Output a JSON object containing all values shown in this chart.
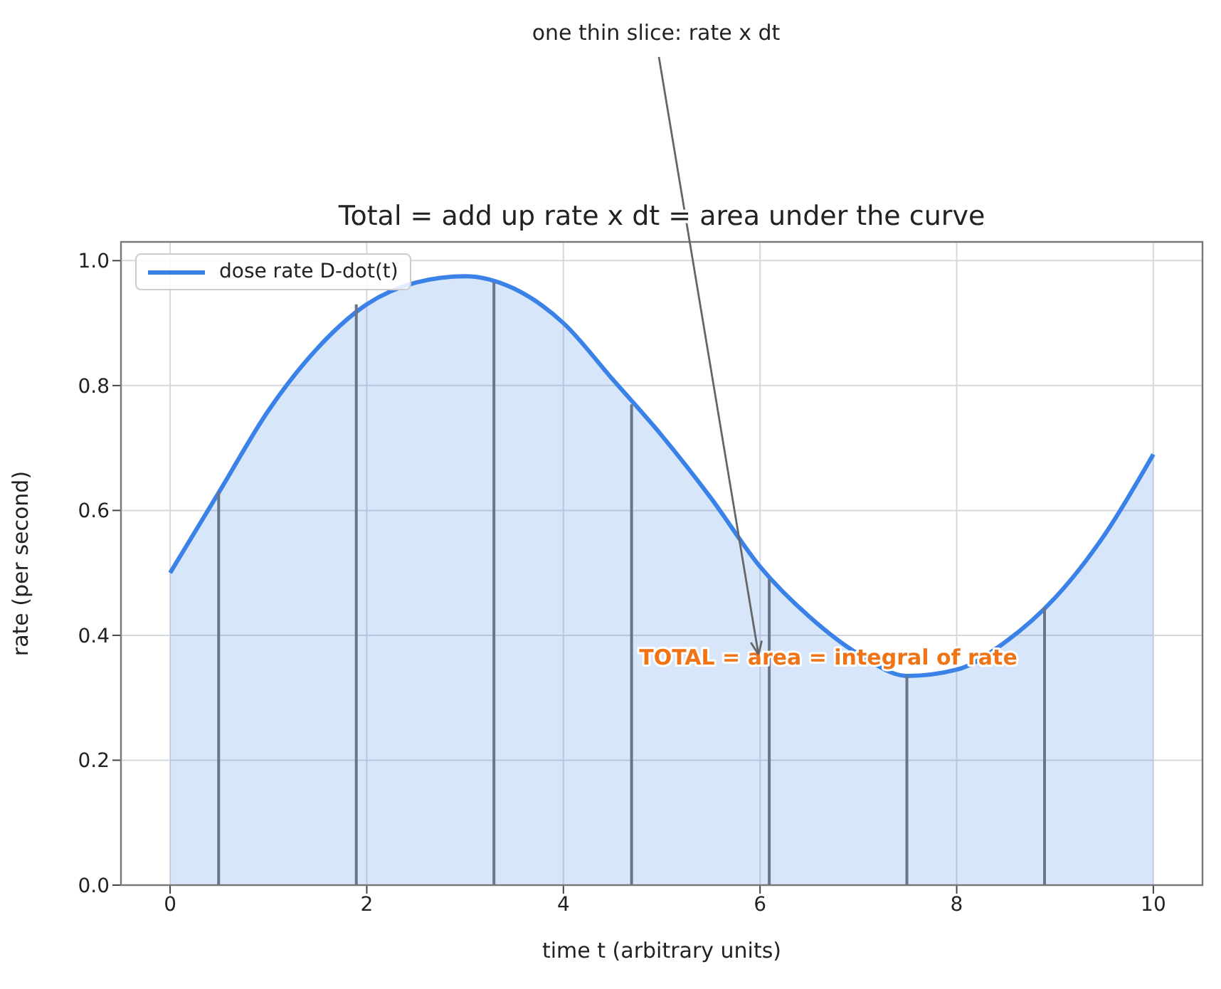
{
  "chart_data": {
    "type": "area",
    "title": "Total = add up rate x dt = area under the curve",
    "xlabel": "time  t  (arbitrary units)",
    "ylabel": "rate  (per second)",
    "xlim": [
      -0.5,
      10.5
    ],
    "xticks": [
      0,
      2,
      4,
      6,
      8,
      10
    ],
    "ylim": [
      0,
      1.03
    ],
    "yticks": [
      {
        "value": 0,
        "label": "0.0"
      },
      0.2,
      0.4,
      0.6,
      0.8,
      {
        "value": 1,
        "label": "1.0"
      }
    ],
    "grid": true,
    "legend": "top left",
    "annotations": [
      "one thin slice: rate x dt",
      "TOTAL = area = integral of rate"
    ],
    "series": [
      {
        "name": "dose rate D-dot(t)",
        "color": "#3b82e8",
        "x": [
          0,
          0.5,
          1,
          1.5,
          2,
          2.5,
          3,
          3.5,
          4,
          4.5,
          5,
          5.5,
          6,
          6.5,
          7,
          7.5,
          8,
          8.5,
          9,
          9.5,
          10
        ],
        "values": [
          0.5,
          0.63,
          0.76,
          0.86,
          0.93,
          0.965,
          0.975,
          0.955,
          0.9,
          0.81,
          0.72,
          0.62,
          0.51,
          0.43,
          0.37,
          0.335,
          0.345,
          0.39,
          0.46,
          0.56,
          0.69
        ]
      },
      {
        "type": "bar",
        "color": "#6b7588",
        "x": [
          0.5,
          1.9,
          3.3,
          4.7,
          6.1,
          7.5,
          8.9
        ],
        "values": [
          0.63,
          0.93,
          0.965,
          0.77,
          0.49,
          0.335,
          0.445
        ]
      }
    ]
  }
}
